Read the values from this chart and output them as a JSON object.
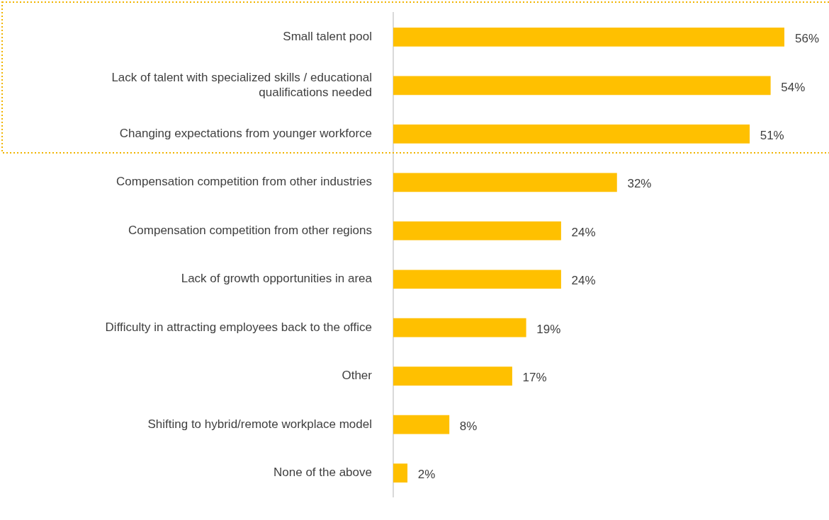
{
  "chart_data": {
    "type": "bar",
    "orientation": "horizontal",
    "categories": [
      "Small talent pool",
      "Lack of talent with specialized skills / educational qualifications needed",
      "Changing expectations from younger workforce",
      "Compensation competition from other industries",
      "Compensation competition from other regions",
      "Lack of growth opportunities in area",
      "Difficulty in attracting employees back to the office",
      "Other",
      "Shifting to hybrid/remote workplace model",
      "None of the above"
    ],
    "values": [
      56,
      54,
      51,
      32,
      24,
      24,
      19,
      17,
      8,
      2
    ],
    "value_labels": [
      "56%",
      "54%",
      "51%",
      "32%",
      "24%",
      "24%",
      "19%",
      "17%",
      "8%",
      "2%"
    ],
    "color": "#ffc000",
    "tick_labels": "y",
    "legend": false
  }
}
